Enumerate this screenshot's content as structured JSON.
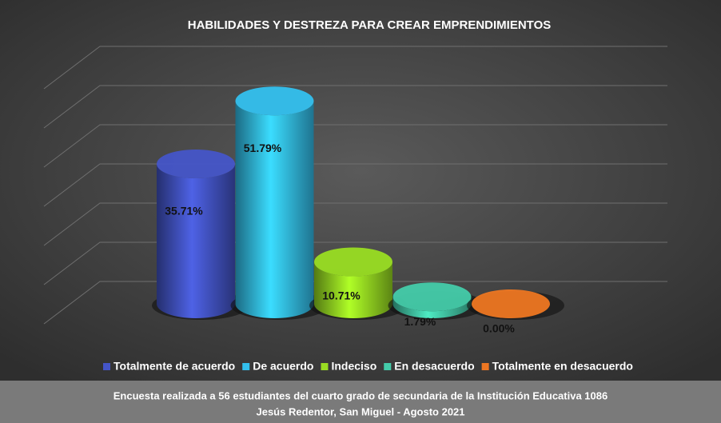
{
  "chart_data": {
    "type": "cylinder",
    "title": "HABILIDADES Y DESTREZA PARA CREAR EMPRENDIMIENTOS",
    "categories": [
      "Totalmente de acuerdo",
      "De acuerdo",
      "Indeciso",
      "En desacuerdo",
      "Totalmente en desacuerdo"
    ],
    "values": [
      35.71,
      51.79,
      10.71,
      1.79,
      0.0
    ],
    "value_labels": [
      "35.71%",
      "51.79%",
      "10.71%",
      "1.79%",
      "0.00%"
    ],
    "colors": [
      "#4455c8",
      "#33c0ee",
      "#99dd22",
      "#44ccaa",
      "#ee7722"
    ],
    "ylim": [
      0,
      60
    ],
    "yticks": [
      0,
      10,
      20,
      30,
      40,
      50,
      60
    ],
    "grid": true,
    "legend": "bottom",
    "footer": [
      "Encuesta realizada a 56 estudiantes del cuarto grado de secundaria de la Institución Educativa 1086",
      "Jesús Redentor, San Miguel - Agosto 2021"
    ]
  }
}
